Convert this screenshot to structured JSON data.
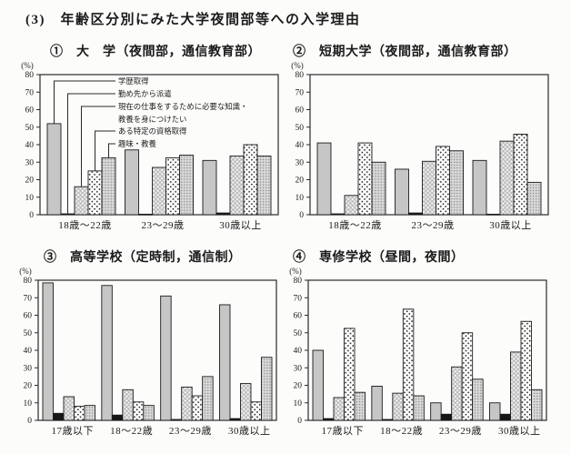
{
  "page": {
    "title": "(3)　年齢区分別にみた大学夜間部等への入学理由"
  },
  "legend": {
    "items": [
      {
        "label": "学歴取得"
      },
      {
        "label": "勤め先から派遣"
      },
      {
        "label": "現在の仕事をするために必要な知識・",
        "label2": "教養を身につけたい"
      },
      {
        "label": "ある特定の資格取得"
      },
      {
        "label": "趣味・教養"
      }
    ]
  },
  "style": {
    "series_fills": [
      "#c6c6c6",
      "#161616",
      "pattern:white-dots",
      "pattern:black-dots",
      "pattern:fine-dots"
    ],
    "bar_stroke": "#1a1a1a",
    "axis_color": "#2a2a2a"
  },
  "chart_data": [
    {
      "id": "university",
      "type": "bar",
      "title": "①　大　学（夜間部，通信教育部）",
      "ylabel": "(%)",
      "ylim": [
        0,
        80
      ],
      "ytick_step": 10,
      "grid": false,
      "legend_visible": true,
      "legend_position": "inside-top",
      "categories": [
        "18歳～22歳",
        "23～29歳",
        "30歳以上"
      ],
      "series": [
        {
          "name": "学歴取得",
          "values": [
            52,
            37,
            31
          ]
        },
        {
          "name": "勤め先から派遣",
          "values": [
            0.5,
            0.3,
            1
          ]
        },
        {
          "name": "現在の仕事をするために必要な知識・教養を身につけたい",
          "values": [
            16,
            27,
            33.5
          ]
        },
        {
          "name": "ある特定の資格取得",
          "values": [
            25,
            32.5,
            40
          ]
        },
        {
          "name": "趣味・教養",
          "values": [
            32.5,
            34,
            33.5
          ]
        }
      ]
    },
    {
      "id": "junior-college",
      "type": "bar",
      "title": "②　短期大学（夜間部，通信教育部）",
      "ylabel": "(%)",
      "ylim": [
        0,
        80
      ],
      "ytick_step": 10,
      "grid": false,
      "legend_visible": false,
      "categories": [
        "18歳～22歳",
        "23～29歳",
        "30歳以上"
      ],
      "series": [
        {
          "name": "学歴取得",
          "values": [
            41,
            26,
            31
          ]
        },
        {
          "name": "勤め先から派遣",
          "values": [
            0.5,
            1,
            0.3
          ]
        },
        {
          "name": "現在の仕事をするために必要な知識・教養を身につけたい",
          "values": [
            11,
            30.5,
            42
          ]
        },
        {
          "name": "ある特定の資格取得",
          "values": [
            41,
            39,
            46
          ]
        },
        {
          "name": "趣味・教養",
          "values": [
            30,
            36.5,
            18.5
          ]
        }
      ]
    },
    {
      "id": "high-school",
      "type": "bar",
      "title": "③　高等学校（定時制，通信制）",
      "ylabel": "(%)",
      "ylim": [
        0,
        80
      ],
      "ytick_step": 10,
      "grid": false,
      "legend_visible": false,
      "categories": [
        "17歳以下",
        "18～22歳",
        "23～29歳",
        "30歳以上"
      ],
      "series": [
        {
          "name": "学歴取得",
          "values": [
            78.5,
            77,
            71,
            66
          ]
        },
        {
          "name": "勤め先から派遣",
          "values": [
            4,
            3,
            0.5,
            1
          ]
        },
        {
          "name": "現在の仕事をするために必要な知識・教養を身につけたい",
          "values": [
            13.5,
            17.5,
            19,
            21
          ]
        },
        {
          "name": "ある特定の資格取得",
          "values": [
            8,
            10.5,
            14,
            10.5
          ]
        },
        {
          "name": "趣味・教養",
          "values": [
            8.5,
            8.5,
            25,
            36
          ]
        }
      ]
    },
    {
      "id": "vocational",
      "type": "bar",
      "title": "④　専修学校（昼間，夜間）",
      "ylabel": "(%)",
      "ylim": [
        0,
        80
      ],
      "ytick_step": 10,
      "grid": false,
      "legend_visible": false,
      "categories": [
        "17歳以下",
        "18～22歳",
        "23～29歳",
        "30歳以上"
      ],
      "series": [
        {
          "name": "学歴取得",
          "values": [
            40,
            19.5,
            10,
            10
          ]
        },
        {
          "name": "勤め先から派遣",
          "values": [
            1,
            0.5,
            3.5,
            3.5
          ]
        },
        {
          "name": "現在の仕事をするために必要な知識・教養を身につけたい",
          "values": [
            13,
            15.5,
            30.5,
            39
          ]
        },
        {
          "name": "ある特定の資格取得",
          "values": [
            52.5,
            63.5,
            50,
            56.5
          ]
        },
        {
          "name": "趣味・教養",
          "values": [
            16,
            14,
            23.5,
            17.5
          ]
        }
      ]
    }
  ]
}
